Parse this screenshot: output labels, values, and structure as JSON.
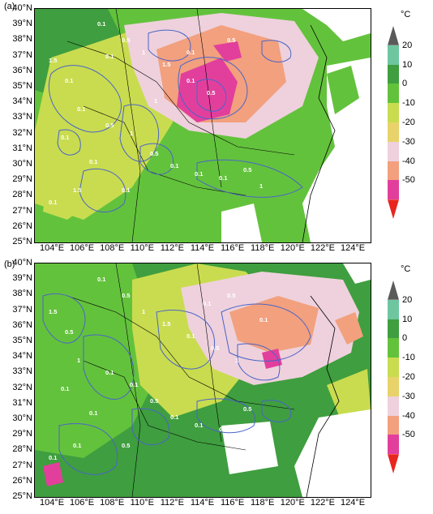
{
  "panels": [
    {
      "id": "a",
      "label": "(a)"
    },
    {
      "id": "b",
      "label": "(b)"
    }
  ],
  "latitudes": [
    "40°N",
    "39°N",
    "38°N",
    "37°N",
    "36°N",
    "35°N",
    "34°N",
    "33°N",
    "32°N",
    "31°N",
    "30°N",
    "29°N",
    "28°N",
    "27°N",
    "26°N",
    "25°N"
  ],
  "longitudes": [
    "104°E",
    "106°E",
    "108°E",
    "110°E",
    "112°E",
    "114°E",
    "116°E",
    "118°E",
    "120°E",
    "122°E",
    "124°E"
  ],
  "colorbar": {
    "unit": "°C",
    "ticks": [
      "20",
      "10",
      "0",
      "-10",
      "-20",
      "-30",
      "-40",
      "-50"
    ],
    "colors": [
      "#5a5a5a",
      "#6dc6a0",
      "#3f9e3f",
      "#63c23c",
      "#c9dc4f",
      "#e7d36a",
      "#eed1dc",
      "#f2a07e",
      "#e23f9d",
      "#e8261e"
    ]
  },
  "contour_labels": {
    "a": [
      "0.1",
      "0.5",
      "1",
      "1.5",
      "0.1",
      "0.5",
      "1",
      "1.5",
      "0.1",
      "0.1",
      "0.5",
      "1",
      "0.5",
      "0.1",
      "0.1",
      "0.1",
      "0.5",
      "1",
      "1.5",
      "0.1",
      "0.1",
      "0.1",
      "0.1",
      "0.1",
      "0.5",
      "0.1"
    ],
    "b": [
      "0.1",
      "0.5",
      "1",
      "1.5",
      "0.1",
      "0.5",
      "1",
      "1.5",
      "0.5",
      "1",
      "0.1",
      "0.1",
      "0.5",
      "0.1",
      "0.1",
      "0.1",
      "0.5",
      "1",
      "0.1",
      "0.1",
      "0.5",
      "0.1",
      "0.1",
      "0.1",
      "0.5",
      "0.1"
    ]
  }
}
